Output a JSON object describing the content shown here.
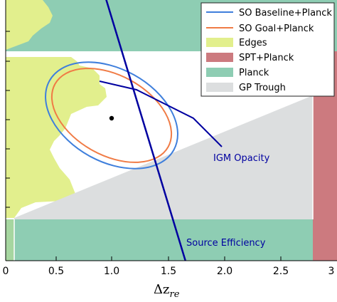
{
  "chart_data": {
    "type": "line",
    "xlabel": "Δz_re",
    "xlabel_main": "Δz",
    "xlabel_sub": "re",
    "xlim": [
      0,
      3.0
    ],
    "xticks": [
      0,
      0.5,
      1.0,
      1.5,
      2.0,
      2.5,
      3.0
    ],
    "xtick_labels": [
      "0",
      "0.5",
      "1.0",
      "1.5",
      "2.0",
      "2.5",
      "3"
    ],
    "ylim": [
      0,
      1
    ],
    "yticks": [
      0.1,
      0.2,
      0.3,
      0.4,
      0.5,
      0.6,
      0.7
    ],
    "legend": {
      "placement": "top-right",
      "entries": [
        {
          "label": "SO Baseline+Planck",
          "kind": "line",
          "color": "#3f7fdc"
        },
        {
          "label": "SO Goal+Planck",
          "kind": "line",
          "color": "#f07b45"
        },
        {
          "label": "Edges",
          "kind": "patch",
          "color": "#e2ef8d"
        },
        {
          "label": "SPT+Planck",
          "kind": "patch",
          "color": "#cc7a7f"
        },
        {
          "label": "Planck",
          "kind": "patch",
          "color": "#8ecdb3"
        },
        {
          "label": "GP Trough",
          "kind": "patch",
          "color": "#dcdedf"
        }
      ]
    },
    "series": [
      {
        "name": "SO Baseline+Planck",
        "kind": "ellipse",
        "center": [
          1.0,
          0.58
        ],
        "half_width_x": 0.63,
        "half_height_y": 0.21,
        "angle_deg": 29,
        "color": "#3f7fdc"
      },
      {
        "name": "SO Goal+Planck",
        "kind": "ellipse",
        "center": [
          1.0,
          0.58
        ],
        "half_width_x": 0.58,
        "half_height_y": 0.18,
        "angle_deg": 29,
        "color": "#f07b45"
      },
      {
        "name": "",
        "kind": "point",
        "x": [
          1.0
        ],
        "y": [
          0.61
        ],
        "color": "#000000"
      }
    ],
    "annotations": [
      {
        "text": "IGM Opacity",
        "line_x": [
          0.85,
          1.2,
          1.75,
          1.95
        ],
        "line_y": [
          0.72,
          0.69,
          0.61,
          0.52
        ],
        "color": "#0000a0"
      },
      {
        "text": "Source Efficiency",
        "line_x": [
          0.9,
          1.67
        ],
        "line_y": [
          1.05,
          -0.05
        ],
        "color": "#0000a0"
      }
    ],
    "regions": [
      {
        "name": "Planck",
        "color": "#8ecdb3"
      },
      {
        "name": "Edges",
        "color": "#e2ef8d"
      },
      {
        "name": "GP Trough",
        "color": "#dcdedf"
      },
      {
        "name": "SPT+Planck",
        "color": "#cc7a7f"
      }
    ]
  }
}
